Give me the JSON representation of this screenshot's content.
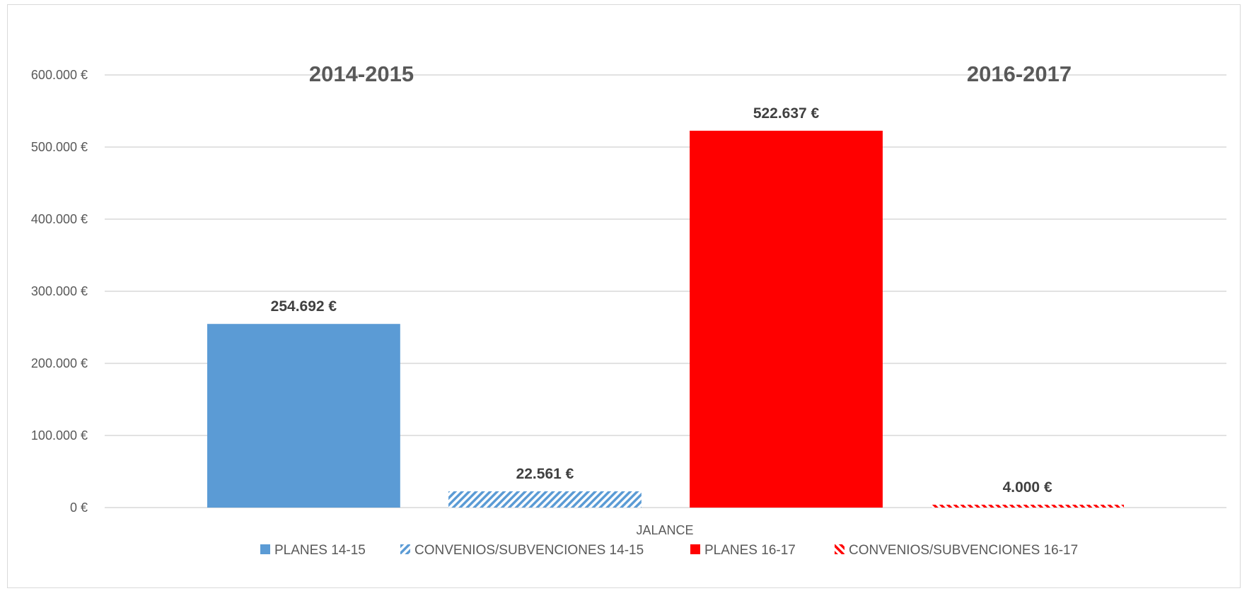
{
  "chart_data": {
    "type": "bar",
    "categories": [
      "JALANCE"
    ],
    "series": [
      {
        "name": "PLANES 14-15",
        "values": [
          254692
        ],
        "label": "254.692 €",
        "color": "#5b9bd5",
        "pattern": "solid"
      },
      {
        "name": "CONVENIOS/SUBVENCIONES 14-15",
        "values": [
          22561
        ],
        "label": "22.561 €",
        "color": "#5b9bd5",
        "pattern": "diagonal-stripes"
      },
      {
        "name": "PLANES 16-17",
        "values": [
          522637
        ],
        "label": "522.637 €",
        "color": "#ff0000",
        "pattern": "solid"
      },
      {
        "name": "CONVENIOS/SUBVENCIONES 16-17",
        "values": [
          4000
        ],
        "label": "4.000 €",
        "color": "#ff0000",
        "pattern": "diagonal-stripes"
      }
    ],
    "ylim": [
      0,
      600000
    ],
    "yticks": [
      0,
      100000,
      200000,
      300000,
      400000,
      500000,
      600000
    ],
    "ytick_labels": [
      "0 €",
      "100.000 €",
      "200.000 €",
      "300.000 €",
      "400.000 €",
      "500.000 €",
      "600.000 €"
    ],
    "annotations": [
      "2014-2015",
      "2016-2017"
    ],
    "grid": true,
    "legend_position": "bottom"
  }
}
